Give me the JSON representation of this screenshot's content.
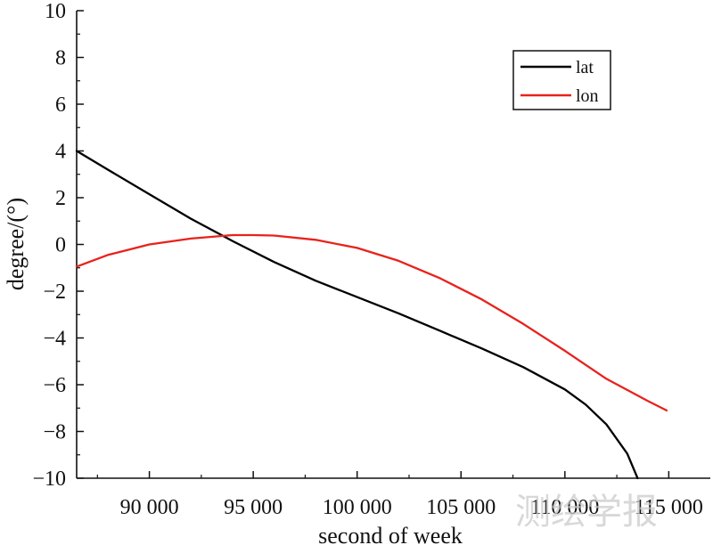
{
  "chart_data": {
    "type": "line",
    "xlabel": "second of week",
    "ylabel": "degree/(°)",
    "xlim": [
      86500,
      117000
    ],
    "ylim": [
      -10,
      10
    ],
    "x_ticks": [
      90000,
      95000,
      100000,
      105000,
      110000,
      115000
    ],
    "x_tick_labels": [
      "90 000",
      "95 000",
      "100 000",
      "105 000",
      "110 000",
      "115 000"
    ],
    "y_ticks": [
      -10,
      -8,
      -6,
      -4,
      -2,
      0,
      2,
      4,
      6,
      8,
      10
    ],
    "y_tick_labels": [
      "−10",
      "−8",
      "−6",
      "−4",
      "−2",
      "0",
      "2",
      "4",
      "6",
      "8",
      "10"
    ],
    "legend_position": "top-right",
    "series": [
      {
        "name": "lat",
        "color": "#000000",
        "x": [
          86500,
          88000,
          90000,
          92000,
          94000,
          96000,
          98000,
          100000,
          102000,
          104000,
          106000,
          108000,
          110000,
          111000,
          112000,
          113000,
          113500
        ],
        "y": [
          4.0,
          3.2,
          2.15,
          1.1,
          0.15,
          -0.75,
          -1.55,
          -2.25,
          -2.95,
          -3.7,
          -4.45,
          -5.25,
          -6.2,
          -6.85,
          -7.7,
          -8.95,
          -10.0
        ]
      },
      {
        "name": "lon",
        "color": "#e8221b",
        "x": [
          86500,
          88000,
          90000,
          92000,
          94000,
          95000,
          96000,
          98000,
          100000,
          102000,
          104000,
          106000,
          108000,
          110000,
          112000,
          114000,
          114900
        ],
        "y": [
          -0.95,
          -0.45,
          0.0,
          0.25,
          0.4,
          0.4,
          0.38,
          0.2,
          -0.15,
          -0.7,
          -1.45,
          -2.35,
          -3.4,
          -4.55,
          -5.75,
          -6.7,
          -7.1
        ]
      }
    ]
  },
  "watermark": "测绘学报"
}
